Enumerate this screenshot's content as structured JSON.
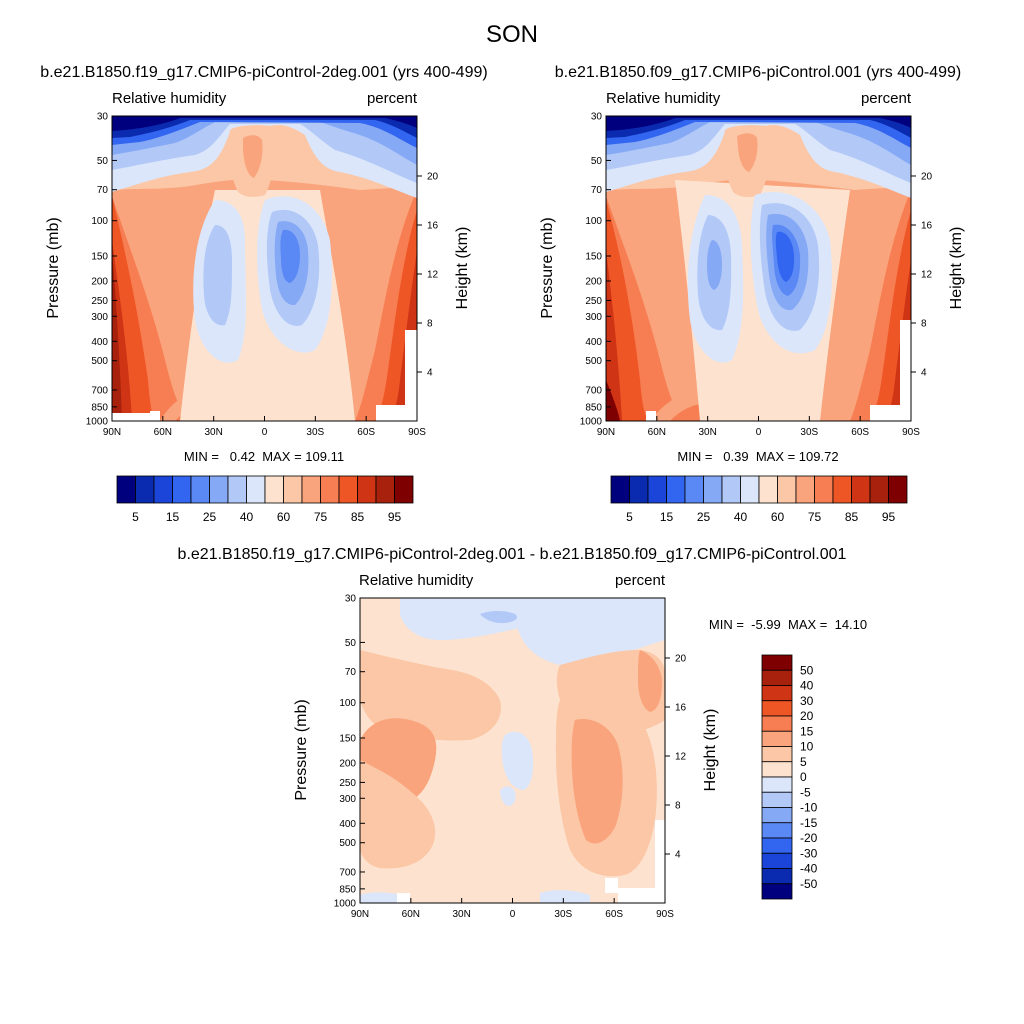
{
  "page": {
    "title": "SON"
  },
  "colors": {
    "abs_levels": [
      "#00007f",
      "#0a2bb0",
      "#1b45d8",
      "#3366f0",
      "#5a88f5",
      "#86a9f6",
      "#b2c9f8",
      "#dbe6fb",
      "#fde3cf",
      "#fbc7a6",
      "#f9a47c",
      "#f77e52",
      "#ef5626",
      "#cf3515",
      "#a8210c",
      "#7f0000"
    ],
    "diff_levels": [
      "#00007f",
      "#0a2bb0",
      "#1b45d8",
      "#3366f0",
      "#5a88f5",
      "#86a9f6",
      "#b2c9f8",
      "#dbe6fb",
      "#fde3cf",
      "#fbc7a6",
      "#f9a47c",
      "#f77e52",
      "#ef5626",
      "#cf3515",
      "#a8210c",
      "#7f0000"
    ]
  },
  "chart_data": [
    {
      "type": "heatmap",
      "title": "b.e21.B1850.f19_g17.CMIP6-piControl-2deg.001 (yrs 400-499)",
      "left_label": "Relative humidity",
      "right_label": "percent",
      "ylabel": "Pressure (mb)",
      "ylabel_right": "Height (km)",
      "x_ticks": [
        "90N",
        "60N",
        "30N",
        "0",
        "30S",
        "60S",
        "90S"
      ],
      "y_ticks": [
        "30",
        "50",
        "70",
        "100",
        "150",
        "200",
        "250",
        "300",
        "400",
        "500",
        "700",
        "850",
        "1000"
      ],
      "y_ticks_right": [
        "20",
        "16",
        "12",
        "8",
        "4"
      ],
      "stats": {
        "min": "0.42",
        "max": "109.11",
        "text": "MIN =   0.42  MAX = 109.11"
      },
      "colorbar_labels": [
        "5",
        "15",
        "25",
        "40",
        "60",
        "75",
        "85",
        "95"
      ]
    },
    {
      "type": "heatmap",
      "title": "b.e21.B1850.f09_g17.CMIP6-piControl.001 (yrs 400-499)",
      "left_label": "Relative humidity",
      "right_label": "percent",
      "ylabel": "Pressure (mb)",
      "ylabel_right": "Height (km)",
      "x_ticks": [
        "90N",
        "60N",
        "30N",
        "0",
        "30S",
        "60S",
        "90S"
      ],
      "y_ticks": [
        "30",
        "50",
        "70",
        "100",
        "150",
        "200",
        "250",
        "300",
        "400",
        "500",
        "700",
        "850",
        "1000"
      ],
      "y_ticks_right": [
        "20",
        "16",
        "12",
        "8",
        "4"
      ],
      "stats": {
        "min": "0.39",
        "max": "109.72",
        "text": "MIN =   0.39  MAX = 109.72"
      },
      "colorbar_labels": [
        "5",
        "15",
        "25",
        "40",
        "60",
        "75",
        "85",
        "95"
      ]
    },
    {
      "type": "heatmap",
      "title": "b.e21.B1850.f19_g17.CMIP6-piControl-2deg.001 - b.e21.B1850.f09_g17.CMIP6-piControl.001",
      "left_label": "Relative humidity",
      "right_label": "percent",
      "ylabel": "Pressure (mb)",
      "ylabel_right": "Height (km)",
      "x_ticks": [
        "90N",
        "60N",
        "30N",
        "0",
        "30S",
        "60S",
        "90S"
      ],
      "y_ticks": [
        "30",
        "50",
        "70",
        "100",
        "150",
        "200",
        "250",
        "300",
        "400",
        "500",
        "700",
        "850",
        "1000"
      ],
      "y_ticks_right": [
        "20",
        "16",
        "12",
        "8",
        "4"
      ],
      "stats": {
        "min": "-5.99",
        "max": "14.10",
        "text": "MIN =  -5.99  MAX =  14.10"
      },
      "colorbar_labels": [
        "50",
        "40",
        "30",
        "20",
        "15",
        "10",
        "5",
        "0",
        "-5",
        "-10",
        "-15",
        "-20",
        "-30",
        "-40",
        "-50"
      ]
    }
  ]
}
